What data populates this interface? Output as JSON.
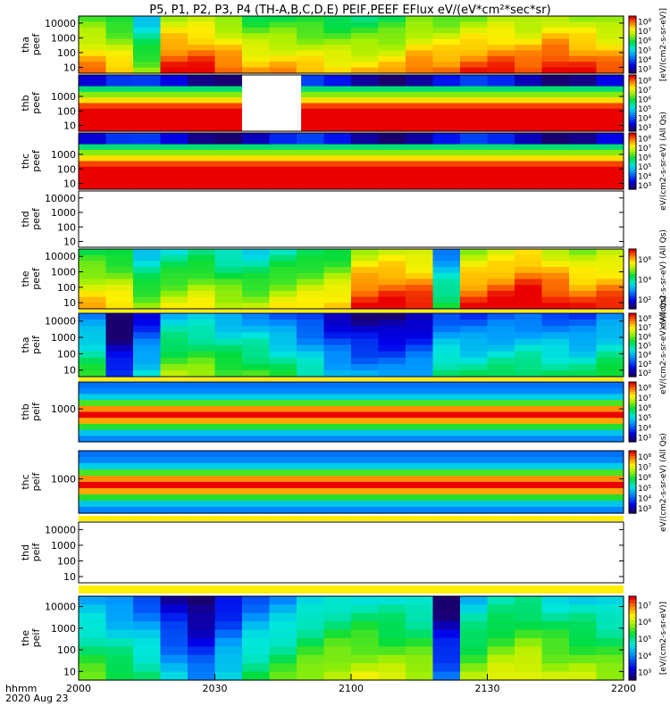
{
  "title": "P5, P1, P2, P3, P4 (TH-A,B,C,D,E) PEIF,PEEF EFlux eV/(eV*cm²*sec*sr)",
  "time_axis": {
    "label_line1": "hhmm",
    "label_line2": "2020 Aug 23",
    "tick_labels": [
      "2000",
      "2030",
      "2100",
      "2130",
      "2200"
    ]
  },
  "colorbar_labels": [
    "[eV/(cm2-s-sr-eV)]",
    "eV/(cm2-s-sr-eV) (All Qs)",
    "eV/(cm2-s-sr-eV) (All Qs)",
    "eV/(cm2-s-sr-eV) (All Qs)",
    "eV/(cm2-s-sr-eV) (All Qs)",
    "[eV/(cm2-s-sr-eV)]"
  ],
  "chart_data": {
    "type": "heatmap",
    "colormap": "rainbow",
    "x_range_hhmm": [
      "2000",
      "2200"
    ],
    "panels": [
      {
        "name": "tha_peef",
        "ylabel": [
          "tha",
          "peef"
        ],
        "yticks": [
          "10",
          "100",
          "1000",
          "10000"
        ],
        "cbar_ticks": [
          "10³",
          "10⁴",
          "10⁵",
          "10⁶",
          "10⁷",
          "10⁸"
        ],
        "levels": [
          0.78,
          0.72,
          0.55,
          0.88,
          0.88,
          0.82,
          0.74,
          0.74,
          0.72,
          0.7,
          0.7,
          0.72,
          0.8,
          0.8,
          0.84,
          0.86,
          0.84,
          0.9,
          0.86,
          0.82
        ]
      },
      {
        "name": "thb_peef",
        "ylabel": [
          "thb",
          "peef"
        ],
        "yticks": [
          "10",
          "100",
          "1000"
        ],
        "cbar_ticks": [
          "10³",
          "10⁴",
          "10⁵",
          "10⁶",
          "10⁷",
          "10⁸"
        ],
        "levels": [
          0.85,
          0.85,
          0.85,
          0.85,
          0.85,
          0.85,
          0.85,
          0.85,
          0.85,
          0.85,
          0.85,
          0.85,
          0.85,
          0.85,
          0.85,
          0.85,
          0.85,
          0.85,
          0.85,
          0.85
        ],
        "gap_hhmm": [
          "2036",
          "2049"
        ]
      },
      {
        "name": "thc_peef",
        "ylabel": [
          "thc",
          "peef"
        ],
        "yticks": [
          "10",
          "100",
          "1000"
        ],
        "cbar_ticks": [
          "10³",
          "10⁴",
          "10⁵",
          "10⁶",
          "10⁷",
          "10⁸"
        ],
        "levels": [
          0.88,
          0.88,
          0.88,
          0.88,
          0.88,
          0.88,
          0.88,
          0.88,
          0.88,
          0.88,
          0.88,
          0.88,
          0.88,
          0.88,
          0.88,
          0.88,
          0.88,
          0.88,
          0.88,
          0.88
        ]
      },
      {
        "name": "thd_peef",
        "ylabel": [
          "thd",
          "peef"
        ],
        "yticks": [
          "10",
          "100",
          "1000",
          "10000"
        ],
        "cbar_ticks": [],
        "levels": []
      },
      {
        "name": "the_peef",
        "ylabel": [
          "the",
          "peef"
        ],
        "yticks": [
          "10",
          "100",
          "1000",
          "10000"
        ],
        "cbar_ticks": [
          "10²",
          "10⁴",
          "10⁶"
        ],
        "levels": [
          0.72,
          0.7,
          0.55,
          0.62,
          0.66,
          0.6,
          0.58,
          0.64,
          0.68,
          0.72,
          0.88,
          0.9,
          0.88,
          0.45,
          0.86,
          0.9,
          0.95,
          0.9,
          0.84,
          0.86
        ]
      },
      {
        "name": "tha_peif",
        "ylabel": [
          "tha",
          "peif"
        ],
        "yticks": [
          "10",
          "100",
          "1000",
          "10000"
        ],
        "cbar_ticks": [
          "10²",
          "10³",
          "10⁴",
          "10⁵",
          "10⁶",
          "10⁷",
          "10⁸"
        ],
        "levels": [
          0.45,
          0.08,
          0.3,
          0.55,
          0.55,
          0.5,
          0.48,
          0.42,
          0.35,
          0.25,
          0.2,
          0.18,
          0.22,
          0.4,
          0.38,
          0.4,
          0.42,
          0.4,
          0.38,
          0.45
        ]
      },
      {
        "name": "thb_peif",
        "ylabel": [
          "thb",
          "peif"
        ],
        "yticks": [
          "1000"
        ],
        "cbar_ticks": [
          "10³",
          "10⁴",
          "10⁵",
          "10⁶",
          "10⁷",
          "10⁸"
        ],
        "levels": [
          0.8,
          0.8,
          0.8,
          0.8,
          0.8,
          0.8,
          0.8,
          0.8,
          0.8,
          0.8,
          0.8,
          0.8,
          0.8,
          0.8,
          0.8,
          0.8,
          0.8,
          0.8,
          0.8,
          0.8
        ]
      },
      {
        "name": "thc_peif",
        "ylabel": [
          "thc",
          "peif"
        ],
        "yticks": [
          "1000"
        ],
        "cbar_ticks": [
          "10³",
          "10⁴",
          "10⁵",
          "10⁶",
          "10⁷",
          "10⁸"
        ],
        "levels": [
          0.8,
          0.8,
          0.8,
          0.8,
          0.8,
          0.8,
          0.8,
          0.8,
          0.8,
          0.8,
          0.8,
          0.8,
          0.8,
          0.8,
          0.8,
          0.8,
          0.8,
          0.8,
          0.8,
          0.8
        ]
      },
      {
        "name": "thd_peif",
        "ylabel": [
          "thd",
          "peif"
        ],
        "yticks": [
          "10",
          "100",
          "1000",
          "10000"
        ],
        "cbar_ticks": [],
        "levels": []
      },
      {
        "name": "the_peif",
        "ylabel": [
          "the",
          "peif"
        ],
        "yticks": [
          "10",
          "100",
          "1000",
          "10000"
        ],
        "cbar_ticks": [
          "10³",
          "10⁴",
          "10⁵",
          "10⁶",
          "10⁷"
        ],
        "levels": [
          0.5,
          0.45,
          0.4,
          0.25,
          0.15,
          0.3,
          0.42,
          0.48,
          0.55,
          0.6,
          0.62,
          0.6,
          0.58,
          0.15,
          0.55,
          0.62,
          0.65,
          0.6,
          0.58,
          0.55
        ]
      }
    ]
  }
}
